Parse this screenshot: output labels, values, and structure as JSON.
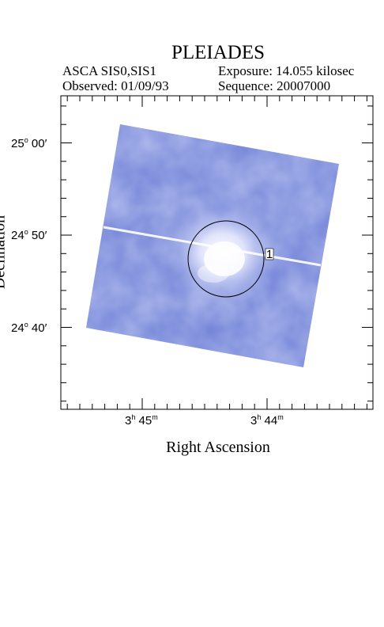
{
  "header": {
    "title": "PLEIADES",
    "instrument": "ASCA SIS0,SIS1",
    "exposure": "Exposure: 14.055 kilosec",
    "observed": "Observed: 01/09/93",
    "sequence": "Sequence: 20007000"
  },
  "chart_data": {
    "type": "heatmap",
    "title": "PLEIADES",
    "xlabel": "Right Ascension",
    "ylabel": "Declination",
    "x_ticks": [
      {
        "h": "3",
        "m": "45",
        "label": "3h 45m"
      },
      {
        "h": "3",
        "m": "44",
        "label": "3h 44m"
      }
    ],
    "y_ticks": [
      {
        "label": "25° 00′",
        "deg": "25",
        "min": "00"
      },
      {
        "label": "24° 50′",
        "deg": "24",
        "min": "50"
      },
      {
        "label": "24° 40′",
        "deg": "24",
        "min": "40"
      }
    ],
    "source_marker": {
      "label": "1"
    },
    "colors": {
      "image": "#6f80d6",
      "highlight": "#ffffff",
      "frame": "#000000"
    }
  }
}
